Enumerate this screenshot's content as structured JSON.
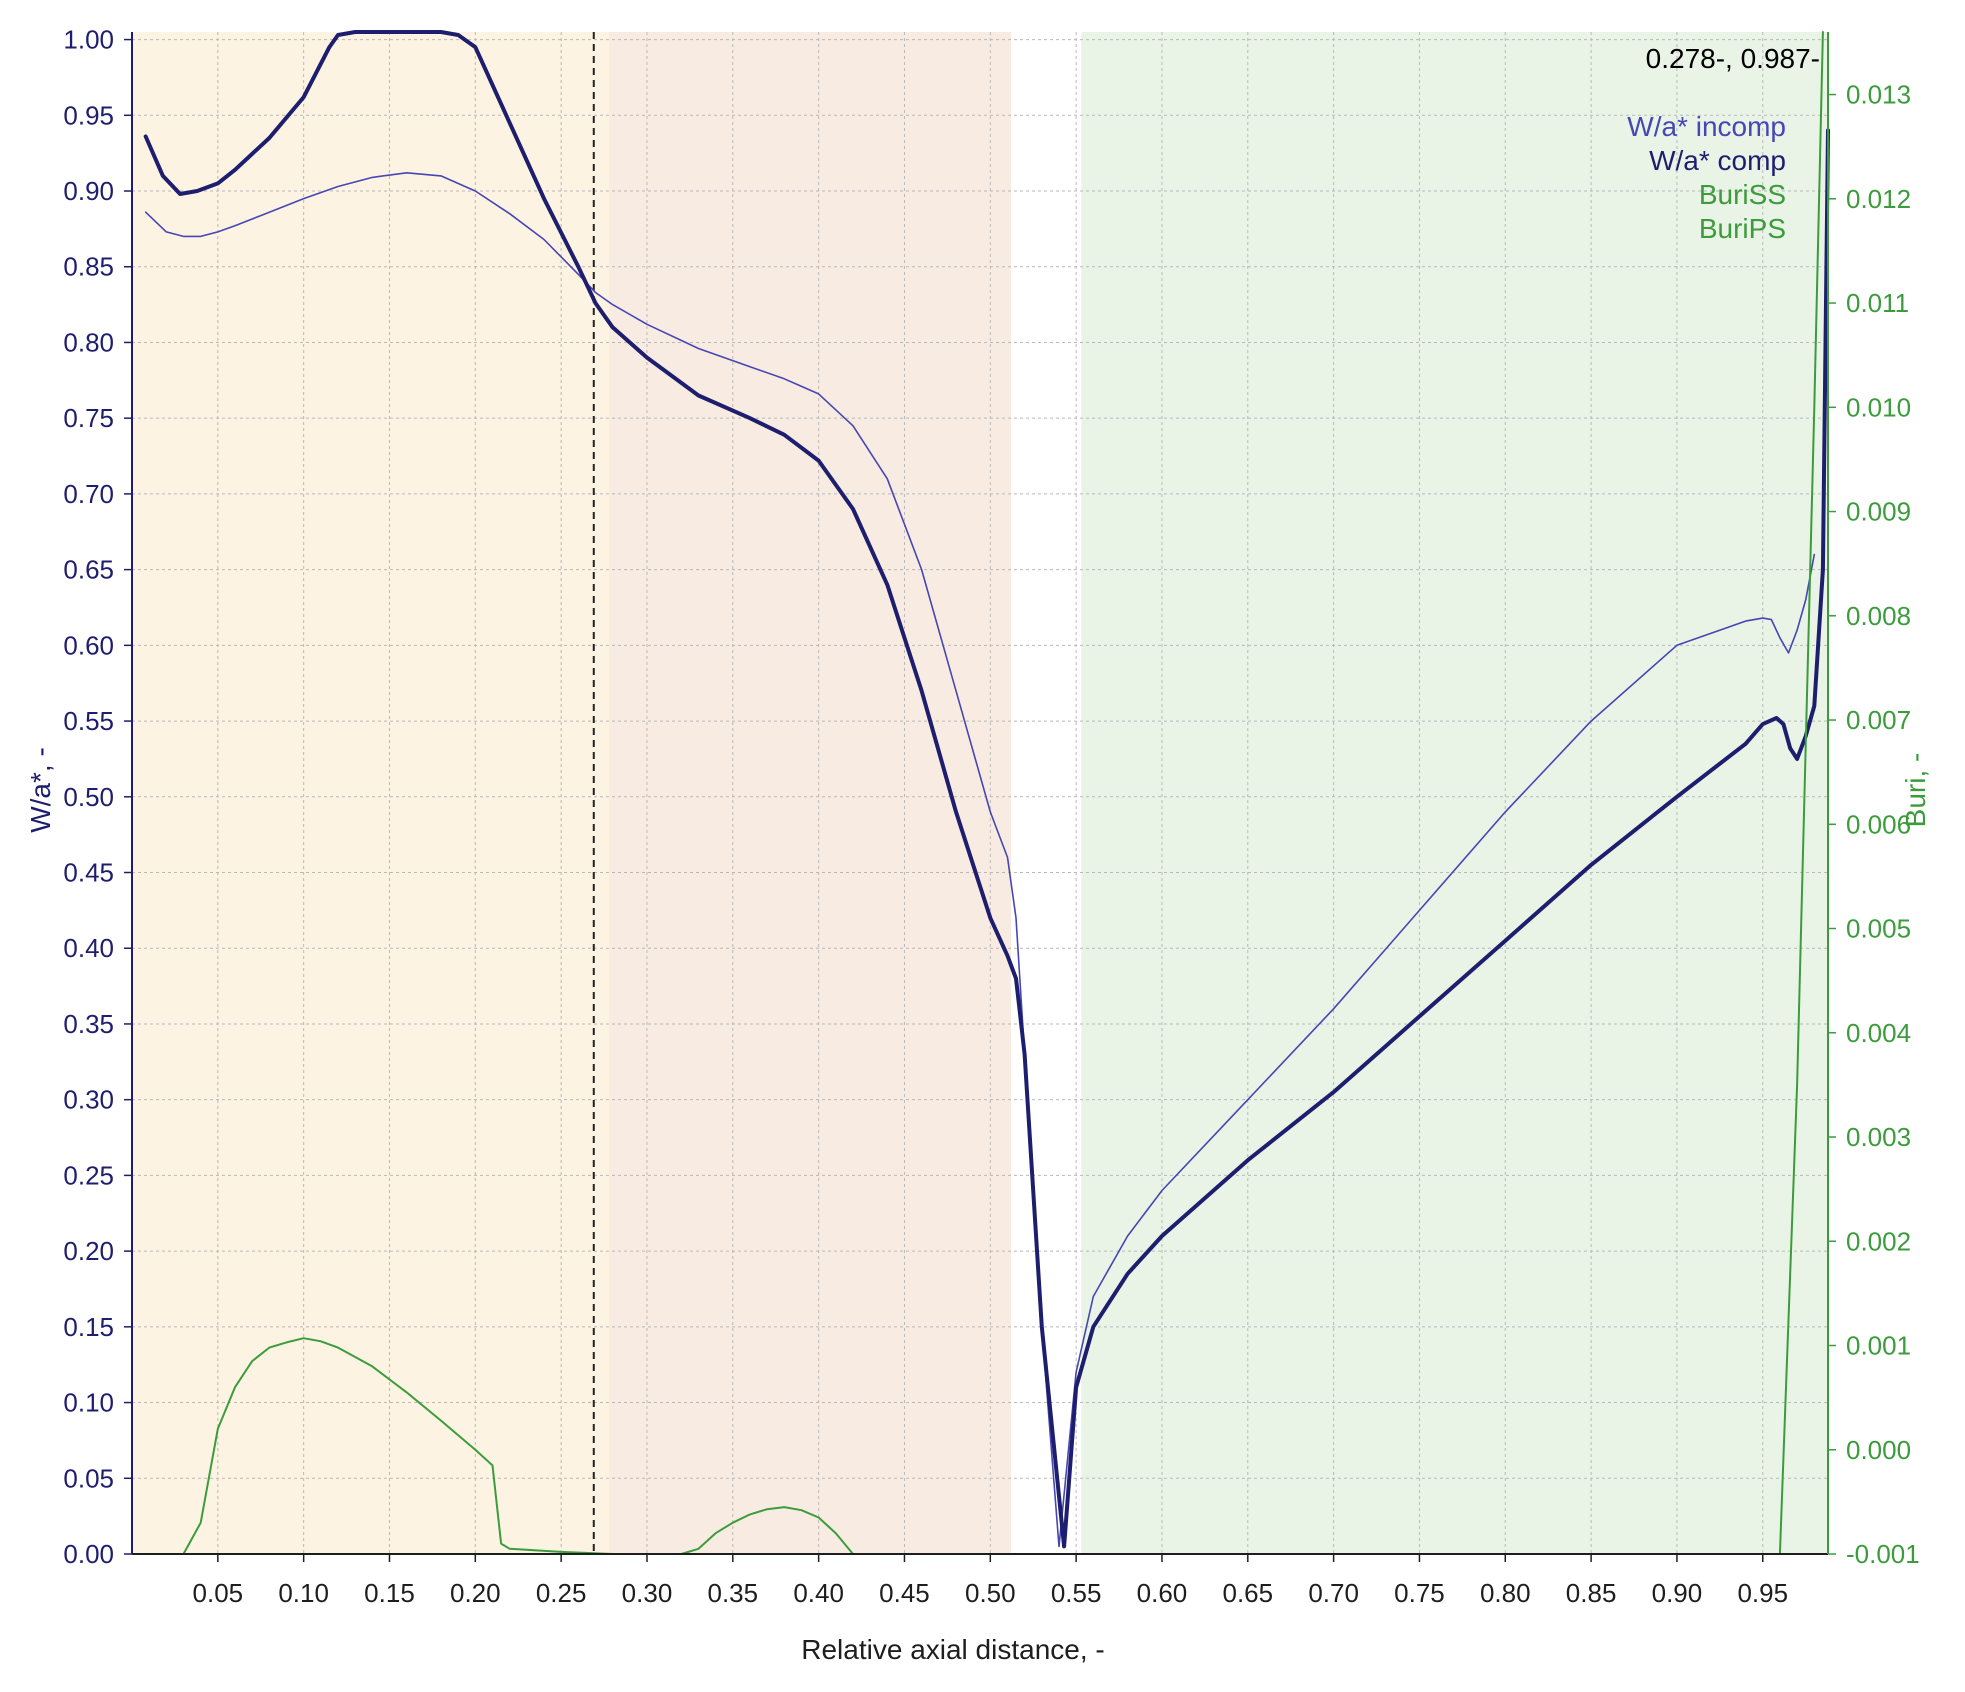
{
  "readout": "0.278-, 0.987-",
  "colors": {
    "incomp": "#4646b4",
    "comp": "#1e1e6e",
    "green": "#3c9c3c",
    "region1": "#fcf3e2",
    "region2": "#f8ebe1",
    "region3": "#e9f4e6",
    "grid": "#b9b9b9",
    "axis_left": "#1e1e6e",
    "axis_right": "#3c9c3c"
  },
  "chart_data": {
    "type": "line",
    "title": "",
    "xlabel": "Relative axial distance, -",
    "ylabel": "W/a*, -",
    "y2label": "Buri, -",
    "xlim": [
      0.0,
      0.988
    ],
    "ylim": [
      0.0,
      1.005
    ],
    "y2lim": [
      -0.001,
      0.0136
    ],
    "xticks": [
      "0.05",
      "0.10",
      "0.15",
      "0.20",
      "0.25",
      "0.30",
      "0.35",
      "0.40",
      "0.45",
      "0.50",
      "0.55",
      "0.60",
      "0.65",
      "0.70",
      "0.75",
      "0.80",
      "0.85",
      "0.90",
      "0.95"
    ],
    "yticks": [
      "0.00",
      "0.05",
      "0.10",
      "0.15",
      "0.20",
      "0.25",
      "0.30",
      "0.35",
      "0.40",
      "0.45",
      "0.50",
      "0.55",
      "0.60",
      "0.65",
      "0.70",
      "0.75",
      "0.80",
      "0.85",
      "0.90",
      "0.95",
      "1.00"
    ],
    "y2ticks": [
      "-0.001",
      "0.000",
      "0.001",
      "0.002",
      "0.003",
      "0.004",
      "0.005",
      "0.006",
      "0.007",
      "0.008",
      "0.009",
      "0.010",
      "0.011",
      "0.012",
      "0.013"
    ],
    "grid": true,
    "legend_position": "top-right",
    "regions": [
      {
        "x0": 0.0,
        "x1": 0.512,
        "color": "#fcf3e2"
      },
      {
        "x0": 0.278,
        "x1": 0.512,
        "color": "#f8ebe1"
      },
      {
        "x0": 0.553,
        "x1": 0.988,
        "color": "#e9f4e6"
      }
    ],
    "marker_x": 0.269,
    "series": [
      {
        "name": "W/a* incomp",
        "axis": "left",
        "color": "#4646b4",
        "width": 1.6,
        "x": [
          0.008,
          0.02,
          0.03,
          0.04,
          0.05,
          0.06,
          0.08,
          0.1,
          0.12,
          0.14,
          0.16,
          0.18,
          0.2,
          0.22,
          0.24,
          0.26,
          0.27,
          0.28,
          0.3,
          0.33,
          0.36,
          0.38,
          0.4,
          0.42,
          0.44,
          0.46,
          0.48,
          0.5,
          0.51,
          0.515,
          0.52,
          0.53,
          0.54,
          0.55,
          0.56,
          0.58,
          0.6,
          0.65,
          0.7,
          0.75,
          0.8,
          0.85,
          0.9,
          0.94,
          0.95,
          0.955,
          0.96,
          0.965,
          0.97,
          0.975,
          0.98
        ],
        "y": [
          0.886,
          0.873,
          0.87,
          0.87,
          0.873,
          0.877,
          0.886,
          0.895,
          0.903,
          0.909,
          0.912,
          0.91,
          0.9,
          0.885,
          0.868,
          0.845,
          0.833,
          0.825,
          0.812,
          0.796,
          0.784,
          0.776,
          0.766,
          0.745,
          0.71,
          0.65,
          0.57,
          0.49,
          0.46,
          0.42,
          0.33,
          0.15,
          0.005,
          0.12,
          0.17,
          0.21,
          0.24,
          0.3,
          0.36,
          0.425,
          0.49,
          0.55,
          0.6,
          0.616,
          0.618,
          0.617,
          0.605,
          0.595,
          0.61,
          0.63,
          0.66
        ]
      },
      {
        "name": "W/a* comp",
        "axis": "left",
        "color": "#1e1e6e",
        "width": 4,
        "x": [
          0.008,
          0.018,
          0.028,
          0.038,
          0.05,
          0.06,
          0.08,
          0.1,
          0.115,
          0.12,
          0.13,
          0.15,
          0.17,
          0.18,
          0.19,
          0.2,
          0.22,
          0.24,
          0.26,
          0.27,
          0.28,
          0.3,
          0.33,
          0.36,
          0.38,
          0.4,
          0.42,
          0.44,
          0.46,
          0.48,
          0.5,
          0.51,
          0.515,
          0.52,
          0.53,
          0.543,
          0.55,
          0.56,
          0.58,
          0.6,
          0.65,
          0.7,
          0.75,
          0.8,
          0.85,
          0.9,
          0.94,
          0.95,
          0.958,
          0.962,
          0.966,
          0.97,
          0.975,
          0.98,
          0.985,
          0.988
        ],
        "y": [
          0.936,
          0.91,
          0.898,
          0.9,
          0.905,
          0.914,
          0.935,
          0.962,
          0.995,
          1.003,
          1.005,
          1.007,
          1.007,
          1.006,
          1.003,
          0.995,
          0.945,
          0.895,
          0.85,
          0.826,
          0.81,
          0.79,
          0.765,
          0.75,
          0.739,
          0.722,
          0.69,
          0.64,
          0.57,
          0.49,
          0.42,
          0.395,
          0.38,
          0.33,
          0.15,
          0.005,
          0.11,
          0.15,
          0.185,
          0.21,
          0.26,
          0.305,
          0.355,
          0.405,
          0.455,
          0.5,
          0.535,
          0.548,
          0.552,
          0.548,
          0.532,
          0.525,
          0.54,
          0.56,
          0.65,
          0.94
        ]
      },
      {
        "name": "BuriSS",
        "axis": "right",
        "color": "#3c9c3c",
        "width": 2,
        "x": [
          0.008,
          0.03,
          0.04,
          0.05,
          0.06,
          0.07,
          0.08,
          0.09,
          0.1,
          0.11,
          0.12,
          0.14,
          0.16,
          0.18,
          0.2,
          0.21,
          0.215,
          0.22,
          0.25,
          0.28,
          0.3,
          0.32,
          0.33,
          0.34,
          0.35,
          0.36,
          0.37,
          0.38,
          0.39,
          0.4,
          0.41,
          0.42,
          0.5,
          0.6,
          0.7,
          0.8,
          0.9,
          0.95,
          0.96,
          0.97,
          0.98,
          0.985
        ],
        "y": [
          -0.001,
          -0.001,
          -0.0007,
          0.0002,
          0.0006,
          0.00085,
          0.00098,
          0.00103,
          0.00107,
          0.00104,
          0.00098,
          0.0008,
          0.00055,
          0.00028,
          0.0,
          -0.00015,
          -0.0009,
          -0.00095,
          -0.00098,
          -0.001,
          -0.001,
          -0.001,
          -0.00095,
          -0.0008,
          -0.0007,
          -0.00062,
          -0.00057,
          -0.00055,
          -0.00058,
          -0.00065,
          -0.0008,
          -0.001,
          -0.001,
          -0.001,
          -0.001,
          -0.001,
          -0.001,
          -0.001,
          -0.001,
          0.0035,
          0.01,
          0.0136
        ]
      },
      {
        "name": "BuriPS",
        "axis": "right",
        "color": "#3c9c3c",
        "width": 1.2,
        "x": [
          0.008,
          0.2,
          0.4,
          0.6,
          0.8,
          0.95,
          0.96
        ],
        "y": [
          -0.001,
          -0.001,
          -0.001,
          -0.001,
          -0.001,
          -0.001,
          -0.001
        ]
      }
    ]
  }
}
